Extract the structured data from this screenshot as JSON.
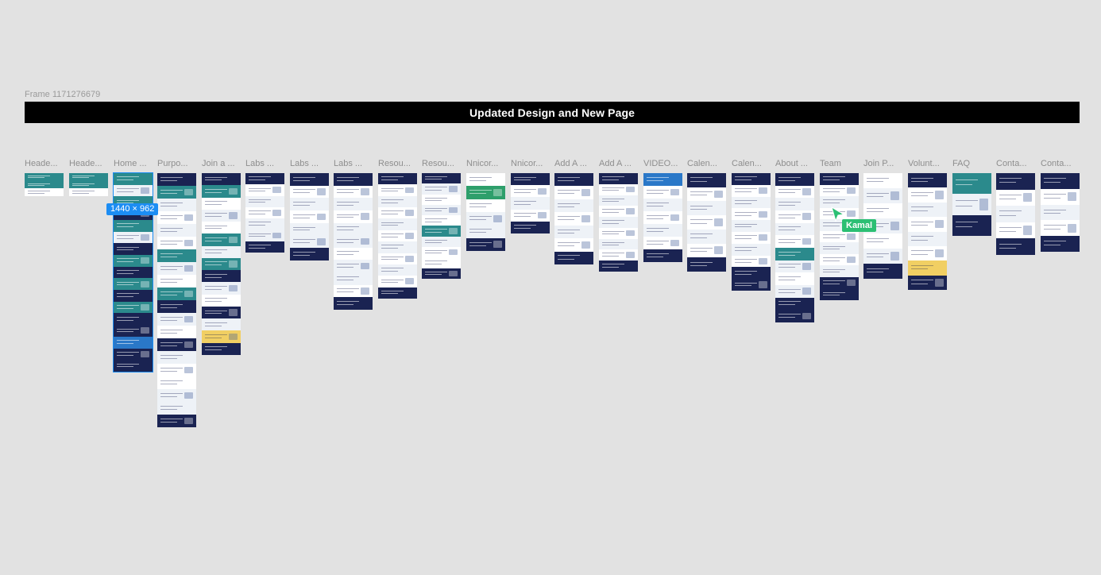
{
  "canvas": {
    "frame_label": "Frame 1171276679",
    "banner_title": "Updated Design and New Page",
    "selection_size": "1440 × 962",
    "collaborator_name": "Kamal",
    "colors": {
      "background": "#e2e2e2",
      "banner": "#000000",
      "selection": "#1c8df3",
      "collaborator": "#2bbf73",
      "navy": "#1a2352",
      "teal": "#2b8a8c",
      "light": "#f3f5f8",
      "yellow": "#f1cf63"
    }
  },
  "frames": [
    {
      "label": "Heade...",
      "selected": false
    },
    {
      "label": "Heade...",
      "selected": false
    },
    {
      "label": "Home ...",
      "selected": true
    },
    {
      "label": "Purpo...",
      "selected": false
    },
    {
      "label": "Join a ...",
      "selected": false
    },
    {
      "label": "Labs ...",
      "selected": false
    },
    {
      "label": "Labs ...",
      "selected": false
    },
    {
      "label": "Labs ...",
      "selected": false
    },
    {
      "label": "Resou...",
      "selected": false
    },
    {
      "label": "Resou...",
      "selected": false
    },
    {
      "label": "Nnicor...",
      "selected": false
    },
    {
      "label": "Nnicor...",
      "selected": false
    },
    {
      "label": "Add A ...",
      "selected": false
    },
    {
      "label": "Add A ...",
      "selected": false
    },
    {
      "label": "VIDEO...",
      "selected": false
    },
    {
      "label": "Calen...",
      "selected": false
    },
    {
      "label": "Calen...",
      "selected": false
    },
    {
      "label": "About ...",
      "selected": false
    },
    {
      "label": "Team",
      "selected": false
    },
    {
      "label": "Join P...",
      "selected": false
    },
    {
      "label": "Volunt...",
      "selected": false
    },
    {
      "label": "FAQ",
      "selected": false
    },
    {
      "label": "Conta...",
      "selected": false
    },
    {
      "label": "Conta...",
      "selected": false
    }
  ]
}
